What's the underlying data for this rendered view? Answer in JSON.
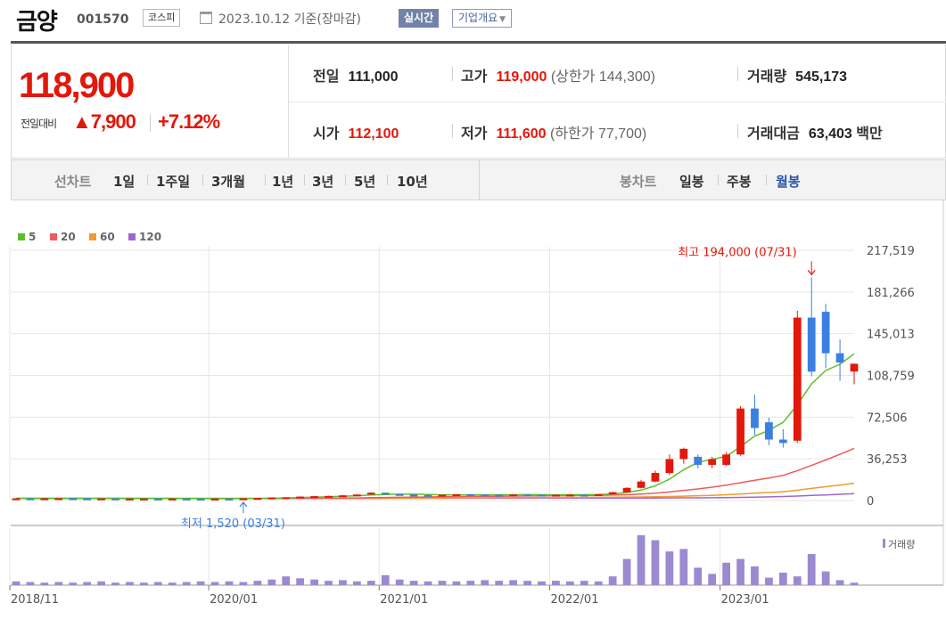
{
  "header": {
    "name": "금양",
    "code": "001570",
    "market": "코스피",
    "date": "2023.10.12 기준(장마감)",
    "realtime_label": "실시간",
    "overview_label": "기업개요"
  },
  "price": {
    "current": "118,900",
    "change_label": "전일대비",
    "change_arrow": "▲",
    "change_value": "7,900",
    "change_pct": "+7.12%",
    "prev_close": {
      "label": "전일",
      "value": "111,000"
    },
    "open": {
      "label": "시가",
      "value": "112,100"
    },
    "high": {
      "label": "고가",
      "value": "119,000",
      "limit_label": "(상한가",
      "limit_value": "144,300)"
    },
    "low": {
      "label": "저가",
      "value": "111,600",
      "limit_label": "(하한가",
      "limit_value": "77,700)"
    },
    "volume": {
      "label": "거래량",
      "value": "545,173"
    },
    "amount": {
      "label": "거래대금",
      "value": "63,403",
      "unit": "백만"
    }
  },
  "period_bar": {
    "line_label": "선차트",
    "line_items": [
      "1일",
      "1주일",
      "3개월",
      "1년",
      "3년",
      "5년",
      "10년"
    ],
    "candle_label": "봉차트",
    "candle_items": [
      "일봉",
      "주봉",
      "월봉"
    ],
    "active": "월봉"
  },
  "colors": {
    "up": "#e3170a",
    "down": "#3b7fe0",
    "ma5": "#5cbf2a",
    "ma20": "#f05a5a",
    "ma60": "#f39a2b",
    "ma120": "#a066cf",
    "volume": "#9b8ad0"
  },
  "chart_data": {
    "type": "candlestick",
    "legend": [
      {
        "name": "5",
        "color": "#5cbf2a"
      },
      {
        "name": "20",
        "color": "#f05a5a"
      },
      {
        "name": "60",
        "color": "#f39a2b"
      },
      {
        "name": "120",
        "color": "#a066cf"
      }
    ],
    "y_ticks": [
      "217,519",
      "181,266",
      "145,013",
      "108,759",
      "72,506",
      "36,253",
      "0"
    ],
    "y_tick_values": [
      217519,
      181266,
      145013,
      108759,
      72506,
      36253,
      0
    ],
    "ylim": [
      0,
      217519
    ],
    "x_ticks": [
      "2018/11",
      "2020/01",
      "2021/01",
      "2022/01",
      "2023/01"
    ],
    "x_tick_index": [
      0,
      14,
      26,
      38,
      50
    ],
    "max_annotation": "최고 194,000 (07/31)",
    "max_index": 56,
    "min_annotation": "최저 1,520 (03/31)",
    "min_index": 16,
    "volume_label": "거래량",
    "candles": [
      {
        "o": 1800,
        "h": 2100,
        "l": 1700,
        "c": 1900
      },
      {
        "o": 1900,
        "h": 2000,
        "l": 1700,
        "c": 1800
      },
      {
        "o": 1800,
        "h": 2000,
        "l": 1700,
        "c": 1900
      },
      {
        "o": 1900,
        "h": 2100,
        "l": 1800,
        "c": 2000
      },
      {
        "o": 2000,
        "h": 2100,
        "l": 1800,
        "c": 1900
      },
      {
        "o": 1900,
        "h": 2000,
        "l": 1700,
        "c": 1800
      },
      {
        "o": 1800,
        "h": 1900,
        "l": 1700,
        "c": 1800
      },
      {
        "o": 1800,
        "h": 1900,
        "l": 1600,
        "c": 1700
      },
      {
        "o": 1700,
        "h": 1800,
        "l": 1600,
        "c": 1700
      },
      {
        "o": 1700,
        "h": 1800,
        "l": 1600,
        "c": 1700
      },
      {
        "o": 1700,
        "h": 1800,
        "l": 1600,
        "c": 1650
      },
      {
        "o": 1650,
        "h": 1800,
        "l": 1600,
        "c": 1700
      },
      {
        "o": 1700,
        "h": 1800,
        "l": 1600,
        "c": 1650
      },
      {
        "o": 1650,
        "h": 1700,
        "l": 1550,
        "c": 1600
      },
      {
        "o": 1600,
        "h": 1700,
        "l": 1550,
        "c": 1650
      },
      {
        "o": 1650,
        "h": 1700,
        "l": 1550,
        "c": 1600
      },
      {
        "o": 1600,
        "h": 2000,
        "l": 1520,
        "c": 1900
      },
      {
        "o": 1900,
        "h": 2300,
        "l": 1800,
        "c": 2200
      },
      {
        "o": 2200,
        "h": 2800,
        "l": 2100,
        "c": 2600
      },
      {
        "o": 2600,
        "h": 3000,
        "l": 2400,
        "c": 2800
      },
      {
        "o": 2800,
        "h": 3600,
        "l": 2600,
        "c": 3400
      },
      {
        "o": 3400,
        "h": 4000,
        "l": 3200,
        "c": 3800
      },
      {
        "o": 3800,
        "h": 4200,
        "l": 3500,
        "c": 4000
      },
      {
        "o": 4000,
        "h": 4800,
        "l": 3800,
        "c": 4500
      },
      {
        "o": 4500,
        "h": 5500,
        "l": 4300,
        "c": 5200
      },
      {
        "o": 5200,
        "h": 7200,
        "l": 5000,
        "c": 6800
      },
      {
        "o": 6800,
        "h": 7000,
        "l": 5200,
        "c": 5600
      },
      {
        "o": 5600,
        "h": 6000,
        "l": 4800,
        "c": 5100
      },
      {
        "o": 5100,
        "h": 5400,
        "l": 4600,
        "c": 4800
      },
      {
        "o": 4800,
        "h": 5000,
        "l": 4300,
        "c": 4600
      },
      {
        "o": 4600,
        "h": 5200,
        "l": 4400,
        "c": 5000
      },
      {
        "o": 5000,
        "h": 5600,
        "l": 4800,
        "c": 5400
      },
      {
        "o": 5400,
        "h": 5800,
        "l": 5000,
        "c": 5200
      },
      {
        "o": 5200,
        "h": 5500,
        "l": 4800,
        "c": 5000
      },
      {
        "o": 5000,
        "h": 5300,
        "l": 4700,
        "c": 4900
      },
      {
        "o": 4900,
        "h": 5400,
        "l": 4700,
        "c": 5200
      },
      {
        "o": 5200,
        "h": 5500,
        "l": 4800,
        "c": 5000
      },
      {
        "o": 5000,
        "h": 5300,
        "l": 4600,
        "c": 4800
      },
      {
        "o": 4800,
        "h": 5200,
        "l": 4500,
        "c": 5000
      },
      {
        "o": 5000,
        "h": 5400,
        "l": 4700,
        "c": 5100
      },
      {
        "o": 5100,
        "h": 5500,
        "l": 4800,
        "c": 5000
      },
      {
        "o": 5000,
        "h": 5800,
        "l": 4800,
        "c": 5500
      },
      {
        "o": 5500,
        "h": 7500,
        "l": 5300,
        "c": 7200
      },
      {
        "o": 7200,
        "h": 11500,
        "l": 7000,
        "c": 11000
      },
      {
        "o": 11000,
        "h": 18000,
        "l": 10500,
        "c": 16500
      },
      {
        "o": 16500,
        "h": 26000,
        "l": 16000,
        "c": 24000
      },
      {
        "o": 24000,
        "h": 40000,
        "l": 22000,
        "c": 36000
      },
      {
        "o": 36000,
        "h": 46000,
        "l": 32000,
        "c": 45000
      },
      {
        "o": 38000,
        "h": 40000,
        "l": 28000,
        "c": 31000
      },
      {
        "o": 31000,
        "h": 38000,
        "l": 28000,
        "c": 36000
      },
      {
        "o": 31000,
        "h": 42000,
        "l": 30000,
        "c": 40000
      },
      {
        "o": 40000,
        "h": 82000,
        "l": 39000,
        "c": 80000
      },
      {
        "o": 80000,
        "h": 92000,
        "l": 57000,
        "c": 63000
      },
      {
        "o": 68000,
        "h": 72000,
        "l": 48000,
        "c": 53000
      },
      {
        "o": 53000,
        "h": 62000,
        "l": 46000,
        "c": 50000
      },
      {
        "o": 52000,
        "h": 165000,
        "l": 50000,
        "c": 159000
      },
      {
        "o": 159000,
        "h": 194000,
        "l": 108000,
        "c": 112000
      },
      {
        "o": 164000,
        "h": 171000,
        "l": 115000,
        "c": 128000
      },
      {
        "o": 128000,
        "h": 140000,
        "l": 104000,
        "c": 120000
      },
      {
        "o": 112100,
        "h": 119000,
        "l": 101000,
        "c": 118900
      }
    ],
    "ma5": [
      1850,
      1860,
      1870,
      1880,
      1900,
      1880,
      1860,
      1840,
      1780,
      1740,
      1710,
      1700,
      1690,
      1670,
      1660,
      1640,
      1680,
      1790,
      1990,
      2220,
      2600,
      2960,
      3320,
      3700,
      4180,
      4860,
      5260,
      5460,
      5500,
      5260,
      4940,
      4940,
      4960,
      4980,
      4960,
      5020,
      5100,
      5020,
      4980,
      5000,
      5060,
      5200,
      5740,
      6980,
      9040,
      12740,
      18540,
      26780,
      33100,
      35800,
      38400,
      46800,
      56000,
      61000,
      68000,
      83200,
      101400,
      113000,
      118400,
      127600
    ],
    "ma20": [
      1850,
      1855,
      1860,
      1860,
      1860,
      1860,
      1860,
      1855,
      1850,
      1840,
      1830,
      1820,
      1810,
      1800,
      1790,
      1780,
      1780,
      1790,
      1810,
      1840,
      1900,
      1960,
      2050,
      2150,
      2280,
      2460,
      2620,
      2780,
      2960,
      3120,
      3260,
      3400,
      3520,
      3640,
      3740,
      3840,
      3960,
      4060,
      4160,
      4260,
      4400,
      4520,
      4720,
      5020,
      5560,
      6320,
      7420,
      8800,
      10100,
      11600,
      13300,
      15500,
      17600,
      19600,
      21800,
      26000,
      30500,
      35200,
      40200,
      45300
    ],
    "ma60": [
      1850,
      1852,
      1854,
      1856,
      1858,
      1859,
      1859,
      1858,
      1856,
      1853,
      1850,
      1846,
      1842,
      1838,
      1834,
      1830,
      1828,
      1828,
      1832,
      1838,
      1850,
      1866,
      1890,
      1920,
      1958,
      2010,
      2060,
      2110,
      2160,
      2210,
      2260,
      2310,
      2360,
      2410,
      2460,
      2510,
      2560,
      2610,
      2660,
      2710,
      2770,
      2830,
      2900,
      2990,
      3110,
      3270,
      3500,
      3800,
      4150,
      4500,
      5000,
      5700,
      6400,
      7000,
      7700,
      9000,
      10500,
      12000,
      13500,
      15000
    ],
    "ma120": [
      1850,
      1851,
      1852,
      1853,
      1854,
      1855,
      1855,
      1855,
      1854,
      1853,
      1852,
      1850,
      1848,
      1846,
      1844,
      1842,
      1841,
      1840,
      1841,
      1843,
      1846,
      1851,
      1858,
      1867,
      1878,
      1892,
      1906,
      1920,
      1934,
      1948,
      1962,
      1976,
      1990,
      2004,
      2018,
      2032,
      2046,
      2060,
      2074,
      2088,
      2102,
      2116,
      2132,
      2150,
      2172,
      2200,
      2240,
      2290,
      2350,
      2420,
      2500,
      2700,
      2950,
      3200,
      3450,
      3900,
      4400,
      4900,
      5400,
      6000
    ],
    "volume": [
      6,
      5,
      4,
      5,
      4,
      5,
      6,
      4,
      5,
      4,
      5,
      4,
      5,
      6,
      5,
      6,
      5,
      7,
      9,
      14,
      11,
      9,
      7,
      8,
      6,
      7,
      16,
      9,
      7,
      6,
      7,
      6,
      7,
      8,
      7,
      8,
      7,
      6,
      7,
      6,
      7,
      6,
      14,
      42,
      80,
      72,
      54,
      58,
      28,
      18,
      36,
      42,
      30,
      12,
      20,
      14,
      50,
      22,
      8,
      4
    ]
  }
}
